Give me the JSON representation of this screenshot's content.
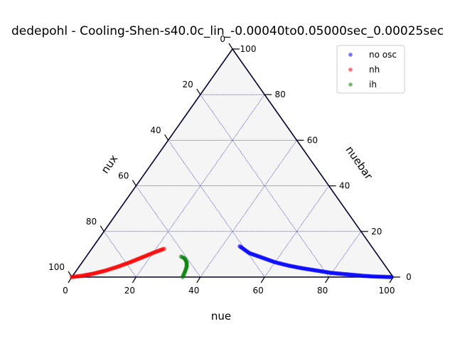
{
  "chart_data": {
    "type": "scatter",
    "subtype": "ternary",
    "title": "dedepohl - Cooling-Shen-s40.0c_lin_-0.00040to0.05000sec_0.00025sec",
    "axes": {
      "bottom": {
        "label": "nue",
        "ticks": [
          "0",
          "20",
          "40",
          "60",
          "80",
          "100"
        ],
        "range": [
          0,
          100
        ]
      },
      "right": {
        "label": "nuebar",
        "ticks": [
          "0",
          "20",
          "40",
          "60",
          "80",
          "100"
        ],
        "range": [
          0,
          100
        ]
      },
      "left": {
        "label": "nux",
        "ticks": [
          "0",
          "20",
          "40",
          "60",
          "80",
          "100"
        ],
        "range": [
          0,
          100
        ]
      }
    },
    "grid": true,
    "grid_color": "#0000aa",
    "background": "#f5f5f5",
    "legend": {
      "placement": "top-right",
      "entries": [
        "no osc",
        "nh",
        "ih"
      ]
    },
    "series": [
      {
        "name": "no osc",
        "color": "#0000ff",
        "points_nue_nuebar": [
          [
            45.5,
            13.5
          ],
          [
            50,
            10.5
          ],
          [
            55,
            8.5
          ],
          [
            60,
            6.5
          ],
          [
            65,
            5
          ],
          [
            70,
            3.8
          ],
          [
            75,
            2.8
          ],
          [
            80,
            1.8
          ],
          [
            85,
            1.2
          ],
          [
            90,
            0.6
          ],
          [
            93,
            0.3
          ],
          [
            97,
            0.1
          ],
          [
            99.5,
            0
          ]
        ]
      },
      {
        "name": "nh",
        "color": "#ff0000",
        "points_nue_nuebar": [
          [
            0,
            0
          ],
          [
            3,
            0.6
          ],
          [
            6,
            1.5
          ],
          [
            9,
            2.8
          ],
          [
            12,
            4.5
          ],
          [
            15,
            6.6
          ],
          [
            18,
            9
          ],
          [
            20.5,
            11
          ],
          [
            22.5,
            12.4
          ]
        ]
      },
      {
        "name": "ih",
        "color": "#008000",
        "points_nue_nuebar": [
          [
            29.5,
            9
          ],
          [
            31,
            8.2
          ],
          [
            32.5,
            6.5
          ],
          [
            33.5,
            4.5
          ],
          [
            34,
            2.5
          ],
          [
            34.5,
            0
          ]
        ]
      }
    ]
  }
}
